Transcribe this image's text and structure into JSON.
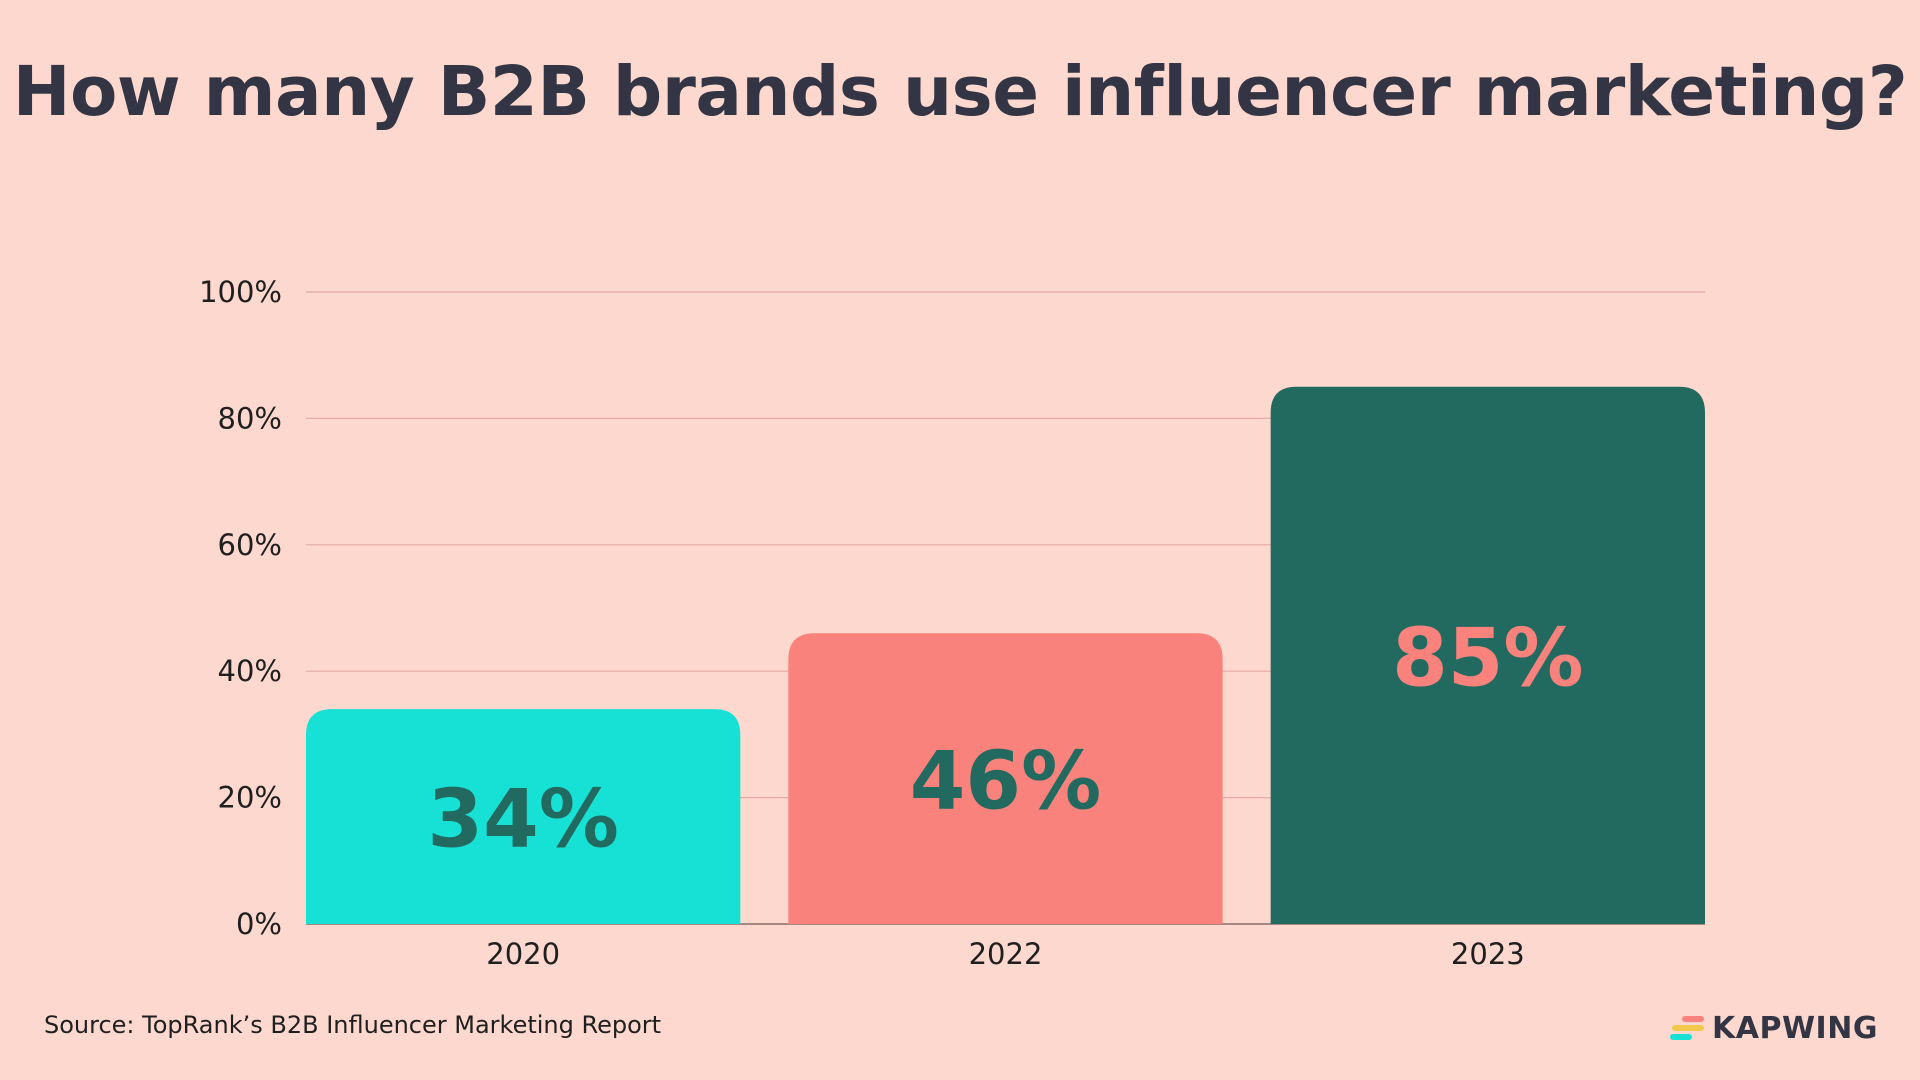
{
  "chart_data": {
    "type": "bar",
    "title": "How many B2B brands use influencer marketing?",
    "categories": [
      "2020",
      "2022",
      "2023"
    ],
    "values": [
      34,
      46,
      85
    ],
    "data_labels": [
      "34%",
      "46%",
      "85%"
    ],
    "yticks": [
      "0%",
      "20%",
      "40%",
      "60%",
      "80%",
      "100%"
    ],
    "ylim": [
      0,
      100
    ],
    "xlabel": "",
    "ylabel": "",
    "grid": true,
    "bar_colors": [
      "#17E1D5",
      "#F9837C",
      "#226A5F"
    ],
    "label_colors": [
      "#226A5F",
      "#226A5F",
      "#F9837C"
    ]
  },
  "footer": {
    "source": "Source: TopRank’s B2B Influencer Marketing Report",
    "logo_text": "KAPWING",
    "logo_mark": "kapwing-logo-icon"
  }
}
